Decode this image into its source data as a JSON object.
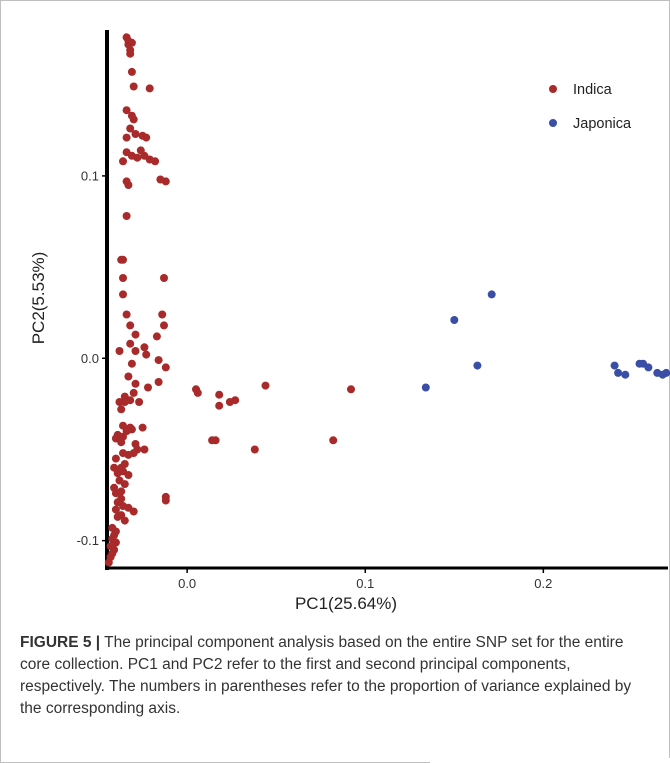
{
  "figure": {
    "label": "FIGURE 5 |",
    "caption": "The principal component analysis based on the entire SNP set for the entire core collection. PC1 and PC2 refer to the first and second principal components, respectively. The numbers in parentheses refer to the proportion of variance explained by the corresponding axis."
  },
  "chart_data": {
    "type": "scatter",
    "title": "",
    "xlabel": "PC1(25.64%)",
    "ylabel": "PC2(5.53%)",
    "xlim": [
      -0.045,
      0.27
    ],
    "ylim": [
      -0.115,
      0.18
    ],
    "xticks": [
      0.0,
      0.1,
      0.2
    ],
    "xtick_labels": [
      "0.0",
      "0.1",
      "0.2"
    ],
    "yticks": [
      -0.1,
      0.0,
      0.1
    ],
    "ytick_labels": [
      "-0.1",
      "0.0",
      "0.1"
    ],
    "grid": false,
    "legend_position": "top-right",
    "series": [
      {
        "name": "Indica",
        "color": "#a82a2a",
        "points": [
          [
            -0.034,
            0.176
          ],
          [
            -0.033,
            0.174
          ],
          [
            -0.033,
            0.172
          ],
          [
            -0.032,
            0.169
          ],
          [
            -0.032,
            0.167
          ],
          [
            -0.031,
            0.173
          ],
          [
            -0.031,
            0.157
          ],
          [
            -0.03,
            0.149
          ],
          [
            -0.021,
            0.148
          ],
          [
            -0.034,
            0.136
          ],
          [
            -0.031,
            0.133
          ],
          [
            -0.03,
            0.131
          ],
          [
            -0.032,
            0.126
          ],
          [
            -0.029,
            0.123
          ],
          [
            -0.025,
            0.122
          ],
          [
            -0.034,
            0.121
          ],
          [
            -0.023,
            0.121
          ],
          [
            -0.034,
            0.113
          ],
          [
            -0.026,
            0.114
          ],
          [
            -0.031,
            0.111
          ],
          [
            -0.028,
            0.11
          ],
          [
            -0.024,
            0.111
          ],
          [
            -0.036,
            0.108
          ],
          [
            -0.021,
            0.109
          ],
          [
            -0.018,
            0.108
          ],
          [
            -0.015,
            0.098
          ],
          [
            -0.012,
            0.097
          ],
          [
            -0.034,
            0.097
          ],
          [
            -0.033,
            0.095
          ],
          [
            -0.034,
            0.078
          ],
          [
            -0.037,
            0.054
          ],
          [
            -0.036,
            0.054
          ],
          [
            -0.036,
            0.044
          ],
          [
            -0.013,
            0.044
          ],
          [
            -0.036,
            0.035
          ],
          [
            -0.014,
            0.024
          ],
          [
            -0.034,
            0.024
          ],
          [
            -0.032,
            0.018
          ],
          [
            -0.013,
            0.018
          ],
          [
            -0.029,
            0.013
          ],
          [
            -0.017,
            0.012
          ],
          [
            -0.032,
            0.008
          ],
          [
            -0.024,
            0.006
          ],
          [
            -0.029,
            0.004
          ],
          [
            -0.038,
            0.004
          ],
          [
            -0.023,
            0.002
          ],
          [
            -0.016,
            -0.001
          ],
          [
            -0.031,
            -0.003
          ],
          [
            -0.033,
            -0.01
          ],
          [
            -0.012,
            -0.005
          ],
          [
            -0.029,
            -0.014
          ],
          [
            -0.016,
            -0.013
          ],
          [
            -0.022,
            -0.016
          ],
          [
            -0.03,
            -0.019
          ],
          [
            -0.035,
            -0.021
          ],
          [
            -0.038,
            -0.024
          ],
          [
            -0.037,
            -0.028
          ],
          [
            -0.027,
            -0.024
          ],
          [
            -0.032,
            -0.023
          ],
          [
            -0.035,
            -0.024
          ],
          [
            -0.036,
            -0.037
          ],
          [
            -0.032,
            -0.038
          ],
          [
            -0.034,
            -0.04
          ],
          [
            -0.031,
            -0.039
          ],
          [
            -0.039,
            -0.042
          ],
          [
            -0.036,
            -0.043
          ],
          [
            -0.04,
            -0.044
          ],
          [
            -0.037,
            -0.046
          ],
          [
            -0.025,
            -0.038
          ],
          [
            -0.029,
            -0.047
          ],
          [
            -0.028,
            -0.05
          ],
          [
            -0.03,
            -0.052
          ],
          [
            -0.024,
            -0.05
          ],
          [
            -0.036,
            -0.052
          ],
          [
            -0.033,
            -0.053
          ],
          [
            -0.04,
            -0.055
          ],
          [
            -0.035,
            -0.058
          ],
          [
            -0.037,
            -0.06
          ],
          [
            -0.041,
            -0.06
          ],
          [
            -0.036,
            -0.062
          ],
          [
            -0.039,
            -0.063
          ],
          [
            -0.033,
            -0.064
          ],
          [
            -0.038,
            -0.067
          ],
          [
            -0.035,
            -0.069
          ],
          [
            -0.041,
            -0.071
          ],
          [
            -0.037,
            -0.073
          ],
          [
            -0.04,
            -0.074
          ],
          [
            -0.037,
            -0.077
          ],
          [
            -0.039,
            -0.079
          ],
          [
            -0.036,
            -0.081
          ],
          [
            -0.033,
            -0.082
          ],
          [
            -0.03,
            -0.084
          ],
          [
            -0.04,
            -0.083
          ],
          [
            -0.037,
            -0.086
          ],
          [
            -0.039,
            -0.087
          ],
          [
            -0.035,
            -0.089
          ],
          [
            -0.012,
            -0.076
          ],
          [
            -0.012,
            -0.078
          ],
          [
            -0.042,
            -0.093
          ],
          [
            -0.04,
            -0.095
          ],
          [
            -0.041,
            -0.097
          ],
          [
            -0.042,
            -0.099
          ],
          [
            -0.04,
            -0.101
          ],
          [
            -0.043,
            -0.103
          ],
          [
            -0.041,
            -0.105
          ],
          [
            -0.042,
            -0.107
          ],
          [
            -0.043,
            -0.109
          ],
          [
            -0.044,
            -0.112
          ],
          [
            0.005,
            -0.017
          ],
          [
            0.006,
            -0.019
          ],
          [
            0.018,
            -0.02
          ],
          [
            0.018,
            -0.026
          ],
          [
            0.024,
            -0.024
          ],
          [
            0.027,
            -0.023
          ],
          [
            0.014,
            -0.045
          ],
          [
            0.016,
            -0.045
          ],
          [
            0.038,
            -0.05
          ],
          [
            0.044,
            -0.015
          ],
          [
            0.082,
            -0.045
          ],
          [
            0.092,
            -0.017
          ]
        ]
      },
      {
        "name": "Japonica",
        "color": "#3a4ea5",
        "points": [
          [
            0.134,
            -0.016
          ],
          [
            0.15,
            0.021
          ],
          [
            0.163,
            -0.004
          ],
          [
            0.171,
            0.035
          ],
          [
            0.24,
            -0.004
          ],
          [
            0.242,
            -0.008
          ],
          [
            0.246,
            -0.009
          ],
          [
            0.254,
            -0.003
          ],
          [
            0.256,
            -0.003
          ],
          [
            0.259,
            -0.005
          ],
          [
            0.264,
            -0.008
          ],
          [
            0.267,
            -0.009
          ],
          [
            0.269,
            -0.008
          ]
        ]
      }
    ]
  }
}
